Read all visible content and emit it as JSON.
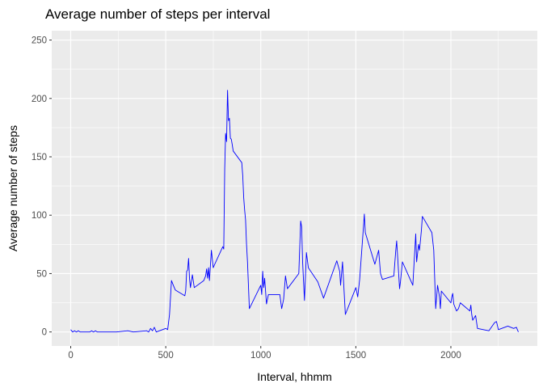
{
  "chart_data": {
    "type": "line",
    "title": "Average number of steps per interval",
    "xlabel": "Interval, hhmm",
    "ylabel": "Average number of steps",
    "xlim": [
      -100,
      2455
    ],
    "ylim": [
      -12,
      258
    ],
    "xticks": [
      0,
      500,
      1000,
      1500,
      2000
    ],
    "yticks": [
      0,
      50,
      100,
      150,
      200,
      250
    ],
    "x_minor": [
      250,
      750,
      1250,
      1750,
      2250
    ],
    "y_minor": [
      25,
      75,
      125,
      175,
      225
    ],
    "grid": true,
    "background": "#ebebeb",
    "grid_color": "#ffffff",
    "line_color": "#0000ff",
    "series": [
      {
        "x": [
          0,
          10,
          20,
          30,
          40,
          50,
          100,
          110,
          120,
          130,
          140,
          200,
          240,
          300,
          330,
          400,
          410,
          420,
          430,
          440,
          450,
          500,
          510,
          520,
          530,
          540,
          550,
          600,
          605,
          610,
          615,
          620,
          625,
          630,
          640,
          650,
          700,
          710,
          715,
          720,
          725,
          730,
          740,
          750,
          755,
          800,
          805,
          810,
          815,
          820,
          825,
          830,
          835,
          840,
          845,
          850,
          855,
          900,
          905,
          910,
          915,
          920,
          925,
          930,
          940,
          1000,
          1005,
          1010,
          1015,
          1020,
          1030,
          1040,
          1100,
          1110,
          1120,
          1130,
          1140,
          1200,
          1210,
          1215,
          1220,
          1230,
          1240,
          1250,
          1300,
          1330,
          1400,
          1415,
          1420,
          1430,
          1445,
          1500,
          1510,
          1520,
          1540,
          1545,
          1550,
          1600,
          1620,
          1630,
          1640,
          1700,
          1710,
          1715,
          1730,
          1735,
          1745,
          1800,
          1815,
          1820,
          1830,
          1835,
          1845,
          1850,
          1900,
          1910,
          1920,
          1930,
          1940,
          1945,
          1950,
          2000,
          2005,
          2010,
          2015,
          2030,
          2040,
          2050,
          2100,
          2105,
          2110,
          2115,
          2130,
          2140,
          2200,
          2230,
          2240,
          2250,
          2300,
          2330,
          2345,
          2355
        ],
        "y": [
          2,
          0,
          1,
          0,
          1,
          0,
          0,
          1,
          0,
          1,
          0,
          0,
          0,
          1,
          0,
          1,
          0,
          3,
          1,
          4,
          0,
          3,
          2,
          15,
          44,
          40,
          36,
          31,
          35,
          52,
          53,
          63,
          46,
          38,
          49,
          38,
          44,
          48,
          54,
          46,
          55,
          44,
          70,
          55,
          57,
          73,
          71,
          140,
          170,
          163,
          207,
          181,
          183,
          166,
          165,
          160,
          155,
          145,
          134,
          115,
          104,
          96,
          75,
          60,
          20,
          40,
          32,
          52,
          38,
          46,
          24,
          32,
          32,
          20,
          28,
          48,
          37,
          50,
          95,
          90,
          60,
          27,
          68,
          55,
          43,
          29,
          61,
          52,
          40,
          60,
          15,
          38,
          30,
          45,
          90,
          101,
          85,
          58,
          70,
          50,
          45,
          48,
          70,
          78,
          37,
          43,
          60,
          40,
          84,
          60,
          75,
          70,
          87,
          99,
          85,
          70,
          20,
          40,
          30,
          20,
          35,
          25,
          30,
          33,
          24,
          18,
          20,
          25,
          18,
          23,
          15,
          10,
          14,
          3,
          1,
          8,
          9,
          2,
          5,
          3,
          4,
          0
        ]
      }
    ]
  }
}
